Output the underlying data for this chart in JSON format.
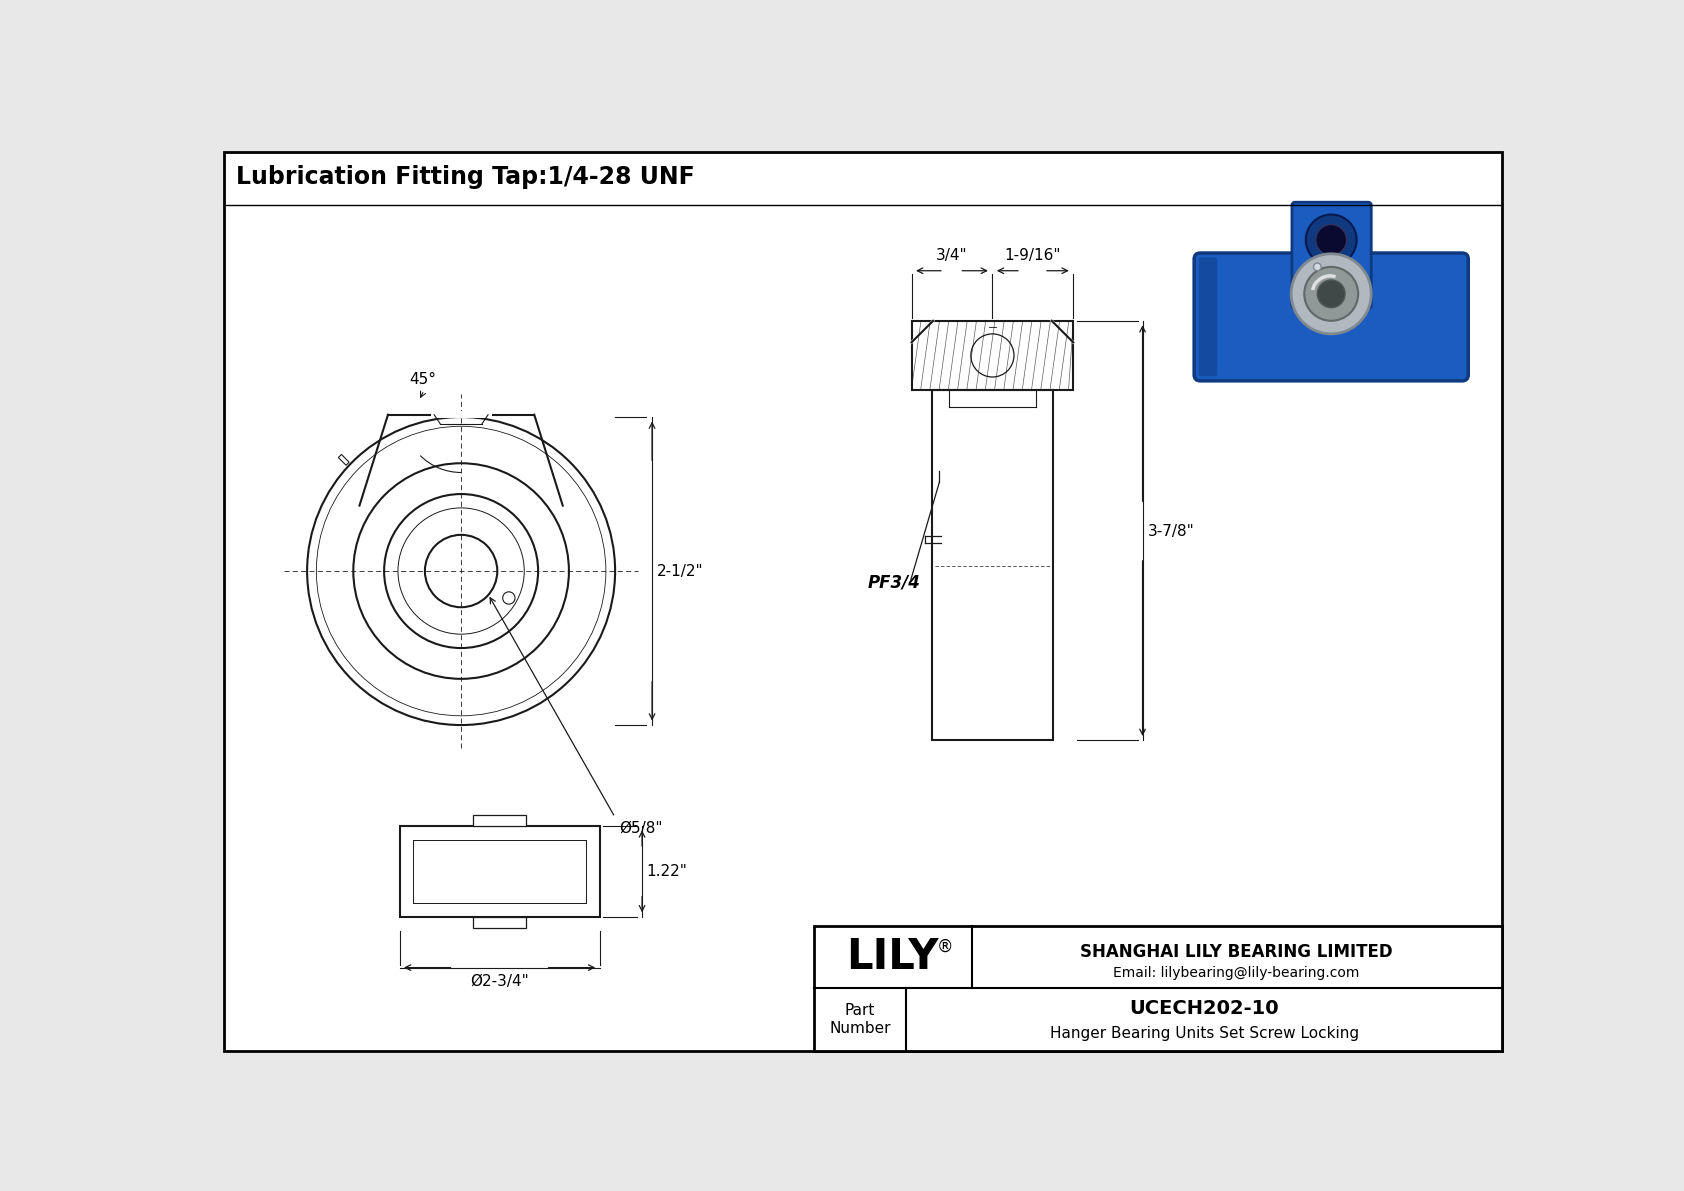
{
  "title": "Lubrication Fitting Tap:1/4-28 UNF",
  "bg_color": "#f0f0f0",
  "line_color": "#1a1a1a",
  "title_fontsize": 18,
  "company_name": "SHANGHAI LILY BEARING LIMITED",
  "company_email": "Email: lilybearing@lily-bearing.com",
  "part_number": "UCECH202-10",
  "part_desc": "Hanger Bearing Units Set Screw Locking",
  "dim_25": "2-1/2\"",
  "dim_58": "Ø5/8\"",
  "dim_34": "3/4\"",
  "dim_1916": "1-9/16\"",
  "dim_378": "3-7/8\"",
  "dim_pf34": "PF3/4",
  "dim_122": "1.22\"",
  "dim_234": "Ø2-3/4\"",
  "dim_45": "45°",
  "blue_body": "#1a5cbf",
  "blue_dark": "#0f3a80",
  "blue_mid": "#2060c0",
  "silver": "#b0b8c0",
  "silver_dark": "#808890"
}
